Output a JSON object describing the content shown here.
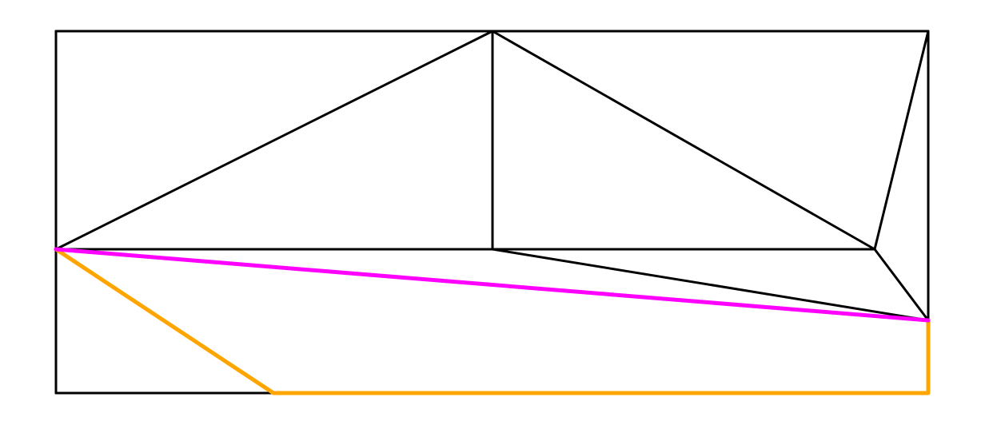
{
  "diagram": {
    "type": "triangulated-polygon",
    "labels": [],
    "colors": {
      "background": "#ffffff",
      "edge": "#000000",
      "highlight_diagonal": "#ff00ff",
      "highlight_path": "#ffa500"
    },
    "legend": []
  }
}
